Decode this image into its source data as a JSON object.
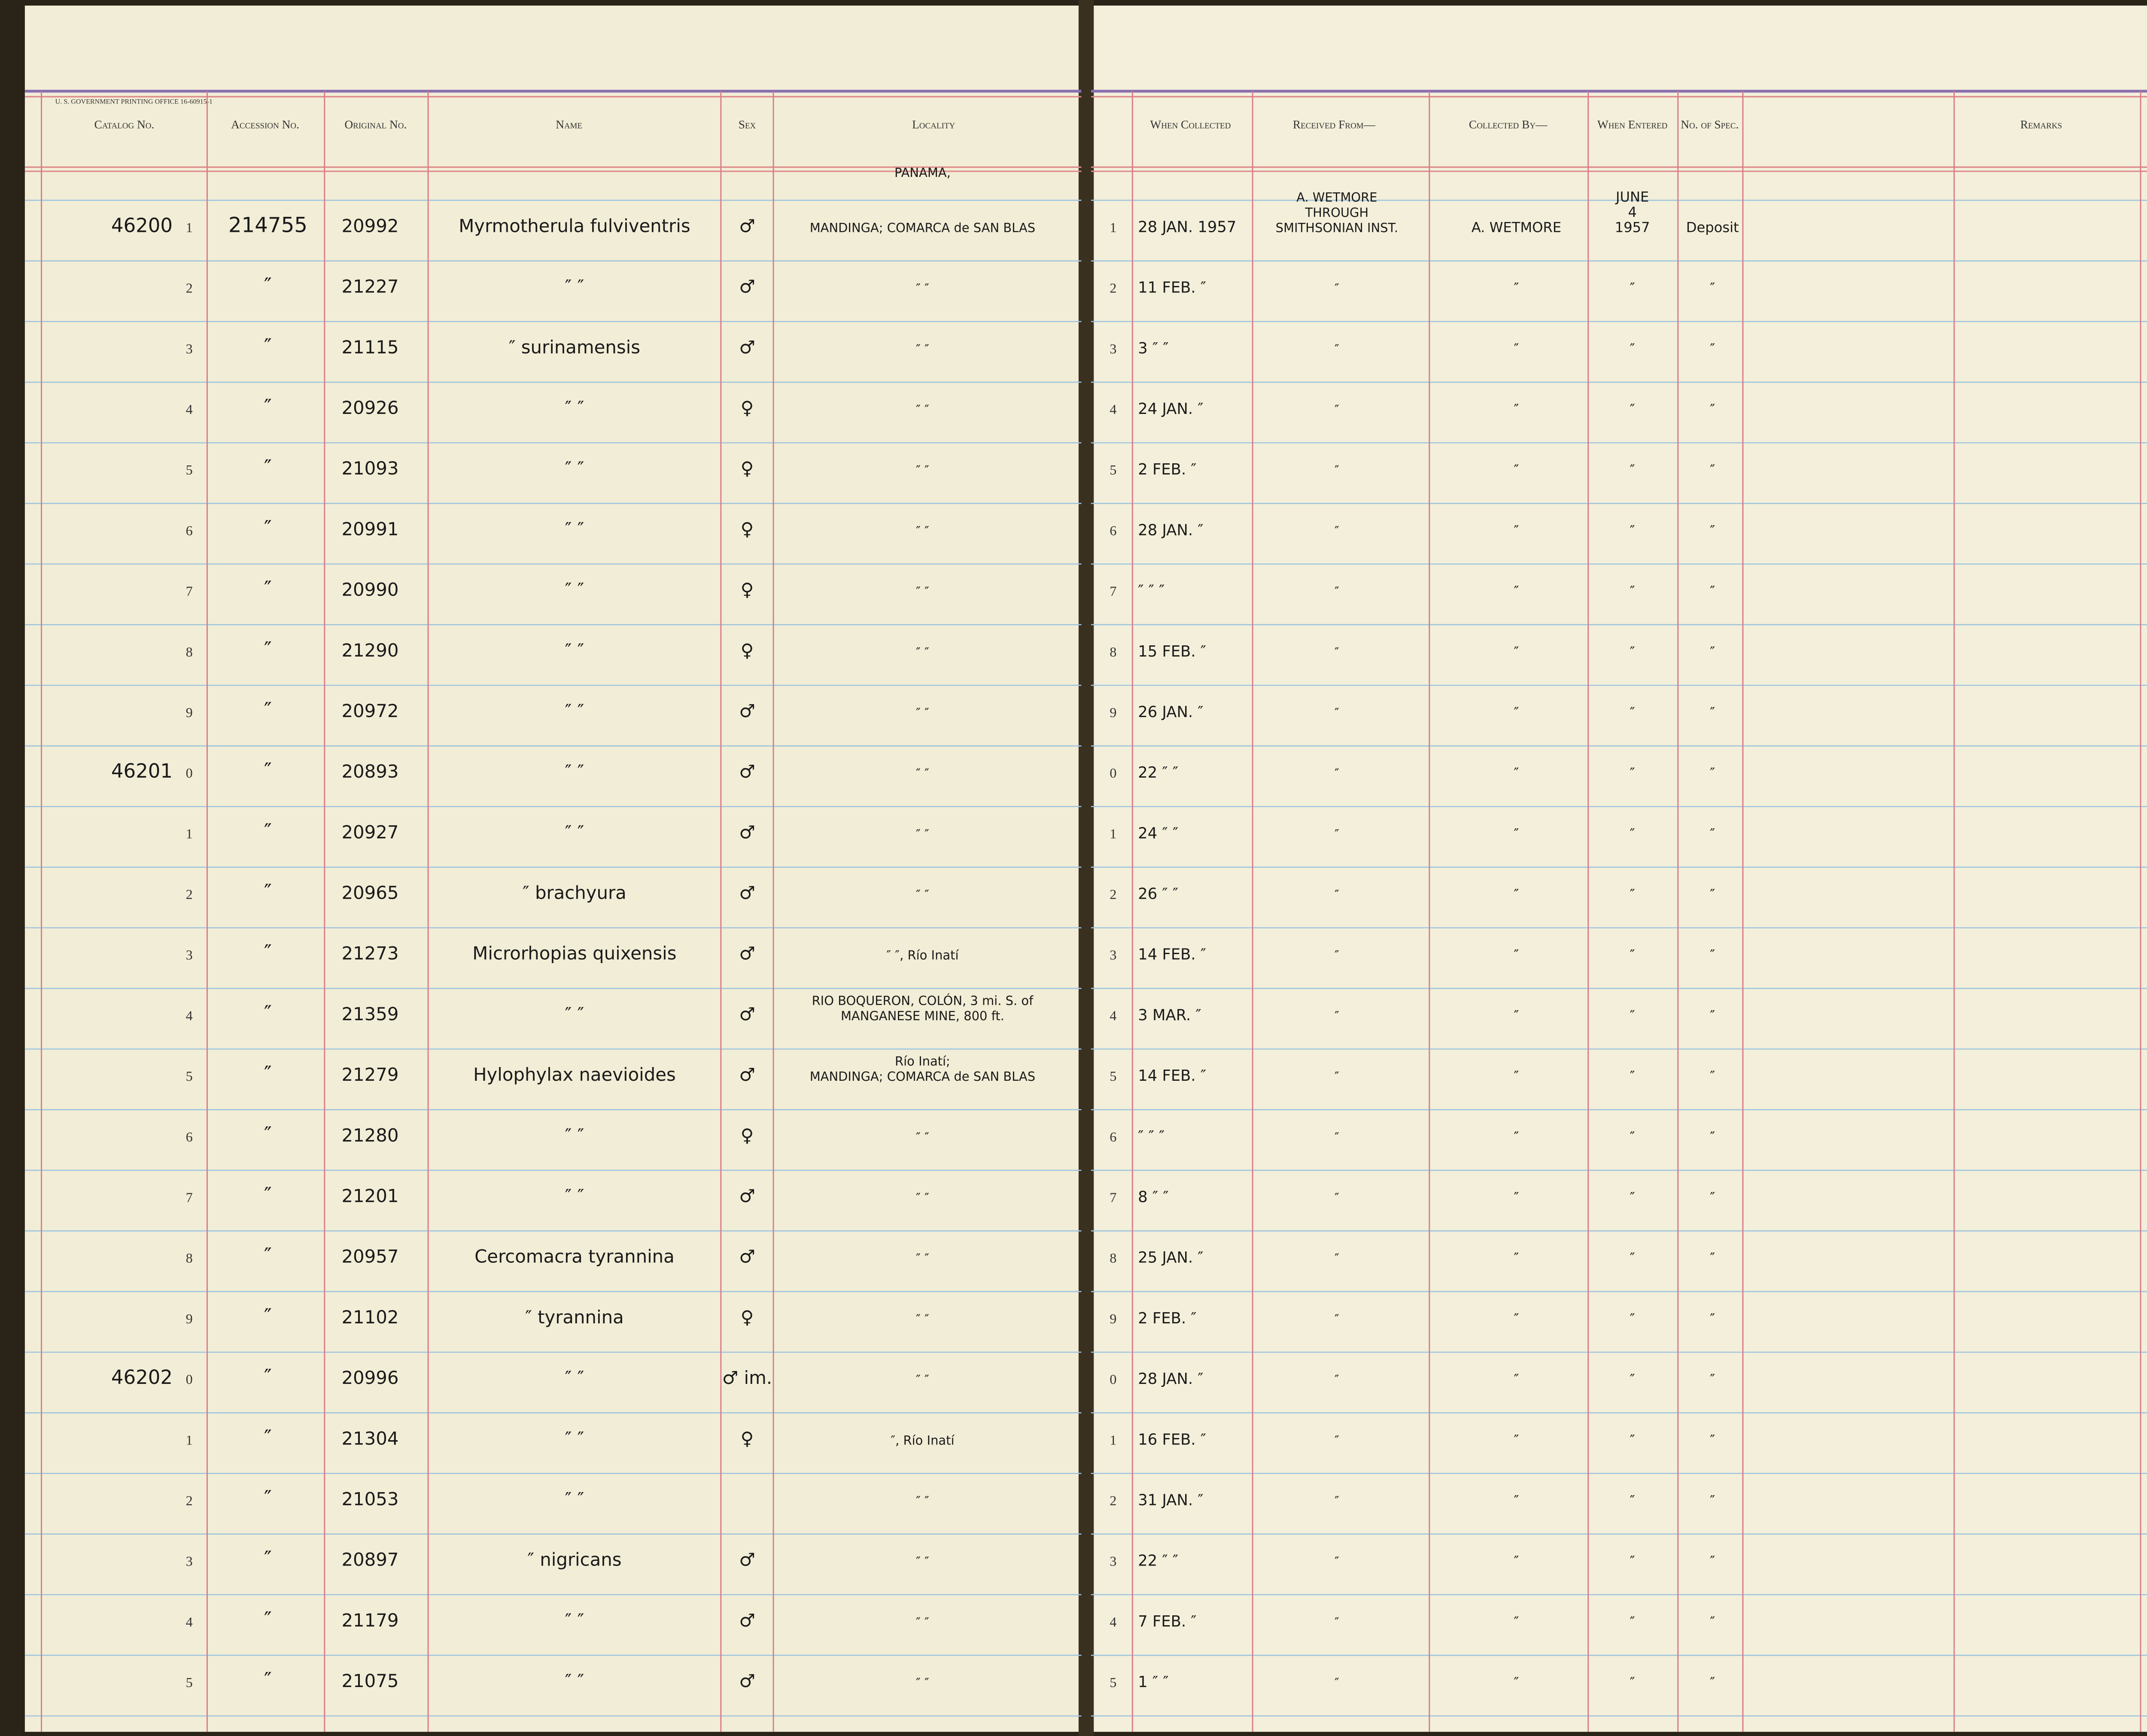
{
  "printer_line": "U. S. GOVERNMENT PRINTING OFFICE 16-60915-1",
  "headers_left": [
    "Catalog No.",
    "Accession No.",
    "Original No.",
    "Name",
    "Sex",
    "Locality"
  ],
  "headers_right": [
    "When Collected",
    "Received From—",
    "Collected By—",
    "When Entered",
    "No. of Spec.",
    "Remarks"
  ],
  "rows": [
    {
      "n": "1",
      "catalog": "46200",
      "accession": "214755",
      "original": "20992",
      "name": "Myrmotherula fulviventris",
      "sex": "♂",
      "locality": [
        "PANAMA,",
        "MANDINGA; COMARCA de SAN BLAS"
      ],
      "date": "28 JAN. 1957",
      "received": [
        "A. WETMORE",
        "THROUGH",
        "SMITHSONIAN INST."
      ],
      "collected": "A. WETMORE",
      "entered": [
        "JUNE",
        "4",
        "1957"
      ],
      "spec": "Deposit"
    },
    {
      "n": "2",
      "accession": "″",
      "original": "21227",
      "name": "″ ″",
      "sex": "♂",
      "locality": "″ ″",
      "date": "11 FEB. ″",
      "received": "″",
      "collected": "″",
      "entered": "″",
      "spec": "″"
    },
    {
      "n": "3",
      "accession": "″",
      "original": "21115",
      "name": "″ surinamensis",
      "sex": "♂",
      "locality": "″ ″",
      "date": "3 ″ ″",
      "received": "″",
      "collected": "″",
      "entered": "″",
      "spec": "″"
    },
    {
      "n": "4",
      "accession": "″",
      "original": "20926",
      "name": "″ ″",
      "sex": "♀",
      "locality": "″ ″",
      "date": "24 JAN. ″",
      "received": "″",
      "collected": "″",
      "entered": "″",
      "spec": "″"
    },
    {
      "n": "5",
      "accession": "″",
      "original": "21093",
      "name": "″ ″",
      "sex": "♀",
      "locality": "″ ″",
      "date": "2 FEB. ″",
      "received": "″",
      "collected": "″",
      "entered": "″",
      "spec": "″"
    },
    {
      "n": "6",
      "accession": "″",
      "original": "20991",
      "name": "″ ″",
      "sex": "♀",
      "locality": "″ ″",
      "date": "28 JAN. ″",
      "received": "″",
      "collected": "″",
      "entered": "″",
      "spec": "″"
    },
    {
      "n": "7",
      "accession": "″",
      "original": "20990",
      "name": "″ ″",
      "sex": "♀",
      "locality": "″ ″",
      "date": "″ ″ ″",
      "received": "″",
      "collected": "″",
      "entered": "″",
      "spec": "″"
    },
    {
      "n": "8",
      "accession": "″",
      "original": "21290",
      "name": "″ ″",
      "sex": "♀",
      "locality": "″ ″",
      "date": "15 FEB. ″",
      "received": "″",
      "collected": "″",
      "entered": "″",
      "spec": "″"
    },
    {
      "n": "9",
      "accession": "″",
      "original": "20972",
      "name": "″ ″",
      "sex": "♂",
      "locality": "″ ″",
      "date": "26 JAN. ″",
      "received": "″",
      "collected": "″",
      "entered": "″",
      "spec": "″"
    },
    {
      "n": "0",
      "catalog": "46201",
      "accession": "″",
      "original": "20893",
      "name": "″ ″",
      "sex": "♂",
      "locality": "″ ″",
      "date": "22 ″ ″",
      "received": "″",
      "collected": "″",
      "entered": "″",
      "spec": "″"
    },
    {
      "n": "1",
      "accession": "″",
      "original": "20927",
      "name": "″ ″",
      "sex": "♂",
      "locality": "″ ″",
      "date": "24 ″ ″",
      "received": "″",
      "collected": "″",
      "entered": "″",
      "spec": "″"
    },
    {
      "n": "2",
      "accession": "″",
      "original": "20965",
      "name": "″ brachyura",
      "sex": "♂",
      "locality": "″ ″",
      "date": "26 ″ ″",
      "received": "″",
      "collected": "″",
      "entered": "″",
      "spec": "″"
    },
    {
      "n": "3",
      "accession": "″",
      "original": "21273",
      "name": "Microrhopias quixensis",
      "sex": "♂",
      "locality": "″ ″, Río Inatí",
      "date": "14 FEB. ″",
      "received": "″",
      "collected": "″",
      "entered": "″",
      "spec": "″"
    },
    {
      "n": "4",
      "accession": "″",
      "original": "21359",
      "name": "″ ″",
      "sex": "♂",
      "locality": [
        "RIO BOQUERON, COLÓN, 3 mi. S. of",
        "MANGANESE MINE, 800 ft."
      ],
      "date": "3 MAR. ″",
      "received": "″",
      "collected": "″",
      "entered": "″",
      "spec": "″"
    },
    {
      "n": "5",
      "accession": "″",
      "original": "21279",
      "name": "Hylophylax naevioides",
      "sex": "♂",
      "locality": [
        "Río Inatí;",
        "MANDINGA; COMARCA de SAN BLAS"
      ],
      "date": "14 FEB. ″",
      "received": "″",
      "collected": "″",
      "entered": "″",
      "spec": "″"
    },
    {
      "n": "6",
      "accession": "″",
      "original": "21280",
      "name": "″ ″",
      "sex": "♀",
      "locality": "″ ″",
      "date": "″ ″ ″",
      "received": "″",
      "collected": "″",
      "entered": "″",
      "spec": "″"
    },
    {
      "n": "7",
      "accession": "″",
      "original": "21201",
      "name": "″ ″",
      "sex": "♂",
      "locality": "″ ″",
      "date": "8 ″ ″",
      "received": "″",
      "collected": "″",
      "entered": "″",
      "spec": "″"
    },
    {
      "n": "8",
      "accession": "″",
      "original": "20957",
      "name": "Cercomacra tyrannina",
      "sex": "♂",
      "locality": "″ ″",
      "date": "25 JAN. ″",
      "received": "″",
      "collected": "″",
      "entered": "″",
      "spec": "″"
    },
    {
      "n": "9",
      "accession": "″",
      "original": "21102",
      "name": "″ tyrannina",
      "sex": "♀",
      "locality": "″ ″",
      "date": "2 FEB. ″",
      "received": "″",
      "collected": "″",
      "entered": "″",
      "spec": "″"
    },
    {
      "n": "0",
      "catalog": "46202",
      "accession": "″",
      "original": "20996",
      "name": "″ ″",
      "sex": "♂ im.",
      "locality": "″ ″",
      "date": "28 JAN. ″",
      "received": "″",
      "collected": "″",
      "entered": "″",
      "spec": "″"
    },
    {
      "n": "1",
      "accession": "″",
      "original": "21304",
      "name": "″ ″",
      "sex": "♀",
      "locality": "″, Río Inatí",
      "date": "16 FEB. ″",
      "received": "″",
      "collected": "″",
      "entered": "″",
      "spec": "″"
    },
    {
      "n": "2",
      "accession": "″",
      "original": "21053",
      "name": "″ ″",
      "locality": "″ ″",
      "date": "31 JAN. ″",
      "received": "″",
      "collected": "″",
      "entered": "″",
      "spec": "″"
    },
    {
      "n": "3",
      "accession": "″",
      "original": "20897",
      "name": "″ nigricans",
      "sex": "♂",
      "locality": "″ ″",
      "date": "22 ″ ″",
      "received": "″",
      "collected": "″",
      "entered": "″",
      "spec": "″"
    },
    {
      "n": "4",
      "accession": "″",
      "original": "21179",
      "name": "″ ″",
      "sex": "♂",
      "locality": "″ ″",
      "date": "7 FEB. ″",
      "received": "″",
      "collected": "″",
      "entered": "″",
      "spec": "″"
    },
    {
      "n": "5",
      "accession": "″",
      "original": "21075",
      "name": "″ ″",
      "sex": "♂",
      "locality": "″ ″",
      "date": "1 ″ ″",
      "received": "″",
      "collected": "″",
      "entered": "″",
      "spec": "″"
    }
  ]
}
